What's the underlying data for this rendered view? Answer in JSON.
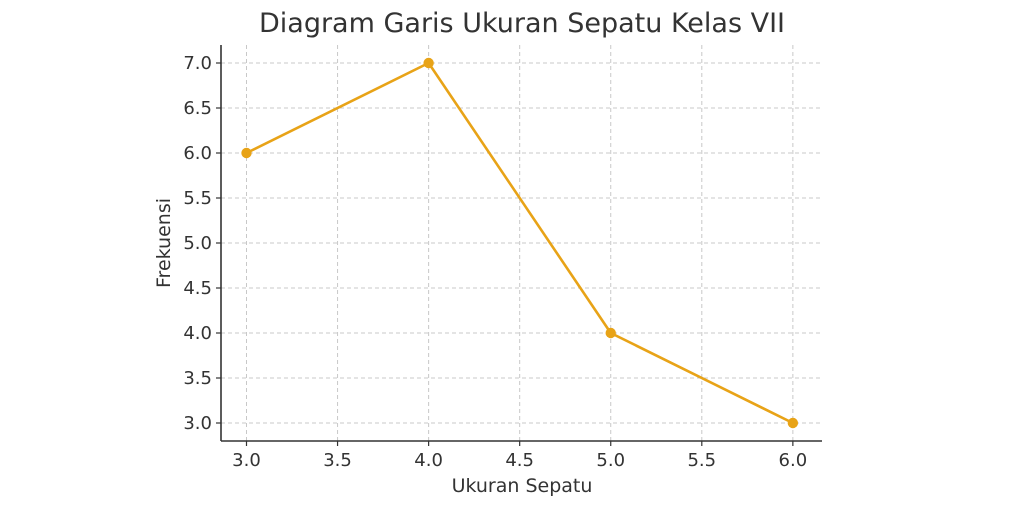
{
  "chart_data": {
    "type": "line",
    "title": "Diagram Garis Ukuran Sepatu Kelas VII",
    "xlabel": "Ukuran Sepatu",
    "ylabel": "Frekuensi",
    "x": [
      3.0,
      4.0,
      5.0,
      6.0
    ],
    "series": [
      {
        "values": [
          6,
          7,
          4,
          3
        ],
        "color": "#E8A317"
      }
    ],
    "xlim": [
      2.86,
      6.16
    ],
    "ylim": [
      2.8,
      7.2
    ],
    "xticks": [
      "3.0",
      "3.5",
      "4.0",
      "4.5",
      "5.0",
      "5.5",
      "6.0"
    ],
    "yticks": [
      "3.0",
      "3.5",
      "4.0",
      "4.5",
      "5.0",
      "5.5",
      "6.0",
      "6.5",
      "7.0"
    ],
    "grid": true,
    "legend": "none"
  }
}
